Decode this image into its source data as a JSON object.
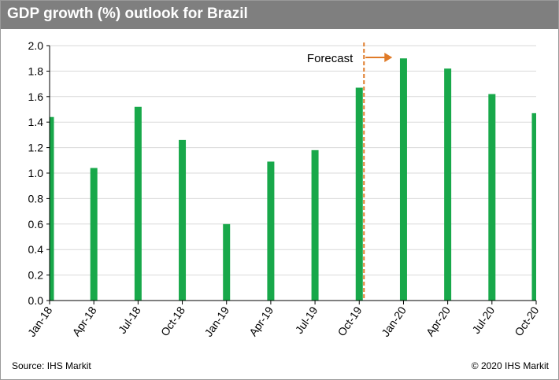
{
  "title": "GDP growth (%) outlook for Brazil",
  "source": "Source: IHS Markit",
  "copyright": "© 2020 IHS Markit",
  "forecast_label": "Forecast",
  "colors": {
    "bar": "#18a84a",
    "forecast_line": "#e07b28",
    "title_bg": "#7f7f7f",
    "axis": "#000000",
    "grid": "#d9d9d9"
  },
  "chart_data": {
    "type": "bar",
    "categories": [
      "Jan-18",
      "Apr-18",
      "Jul-18",
      "Oct-18",
      "Jan-19",
      "Apr-19",
      "Jul-19",
      "Oct-19",
      "Jan-20",
      "Apr-20",
      "Jul-20",
      "Oct-20"
    ],
    "values": [
      1.44,
      1.04,
      1.52,
      1.26,
      0.6,
      1.09,
      1.18,
      1.67,
      1.9,
      1.82,
      1.62,
      1.47
    ],
    "title": "GDP growth (%) outlook for Brazil",
    "xlabel": "",
    "ylabel": "",
    "ylim": [
      0,
      2.0
    ],
    "yticks": [
      "0.0",
      "0.2",
      "0.4",
      "0.6",
      "0.8",
      "1.0",
      "1.2",
      "1.4",
      "1.6",
      "1.8",
      "2.0"
    ],
    "grid": true,
    "forecast_start_after": "Oct-19"
  }
}
